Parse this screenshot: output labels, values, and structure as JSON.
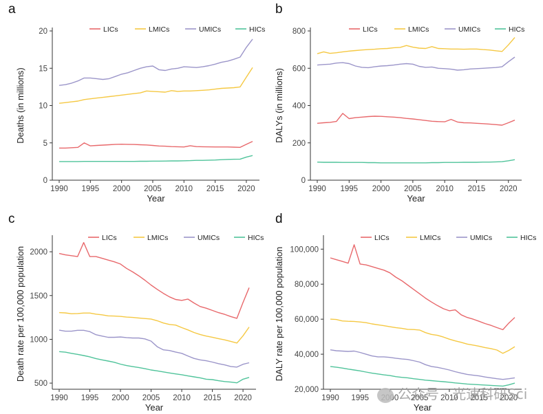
{
  "watermark": "公众号 · 光速科研Sci",
  "colors": {
    "LICs": "#e8686b",
    "LMICs": "#f5c842",
    "UMICs": "#9b95c9",
    "HICs": "#4fc39a"
  },
  "chart_data": [
    {
      "panel": "a",
      "type": "line",
      "xlabel": "Year",
      "ylabel": "Deaths (in millions)",
      "xlim": [
        1990,
        2021
      ],
      "ylim": [
        0,
        20
      ],
      "xticks": [
        1990,
        1995,
        2000,
        2005,
        2010,
        2015,
        2020
      ],
      "yticks": [
        0,
        5,
        10,
        15,
        20
      ],
      "ytick_labels": [
        "0",
        "5",
        "10",
        "15",
        "20"
      ],
      "legend_position": "top-center",
      "x": [
        1990,
        1991,
        1992,
        1993,
        1994,
        1995,
        1996,
        1997,
        1998,
        1999,
        2000,
        2001,
        2002,
        2003,
        2004,
        2005,
        2006,
        2007,
        2008,
        2009,
        2010,
        2011,
        2012,
        2013,
        2014,
        2015,
        2016,
        2017,
        2018,
        2019,
        2020,
        2021
      ],
      "series": [
        {
          "name": "LICs",
          "values": [
            4.3,
            4.3,
            4.35,
            4.4,
            5.0,
            4.6,
            4.65,
            4.7,
            4.75,
            4.8,
            4.82,
            4.8,
            4.78,
            4.75,
            4.72,
            4.65,
            4.58,
            4.55,
            4.5,
            4.48,
            4.45,
            4.62,
            4.5,
            4.48,
            4.46,
            4.45,
            4.45,
            4.45,
            4.42,
            4.4,
            4.8,
            5.2
          ]
        },
        {
          "name": "LMICs",
          "values": [
            10.3,
            10.4,
            10.5,
            10.6,
            10.8,
            10.9,
            11.0,
            11.1,
            11.2,
            11.3,
            11.4,
            11.5,
            11.6,
            11.7,
            11.95,
            11.9,
            11.85,
            11.8,
            12.0,
            11.9,
            11.95,
            11.95,
            12.0,
            12.05,
            12.1,
            12.2,
            12.3,
            12.35,
            12.4,
            12.5,
            13.8,
            15.1
          ]
        },
        {
          "name": "UMICs",
          "values": [
            12.7,
            12.8,
            13.0,
            13.3,
            13.7,
            13.7,
            13.6,
            13.5,
            13.6,
            13.9,
            14.2,
            14.4,
            14.7,
            15.0,
            15.2,
            15.3,
            14.8,
            14.7,
            14.9,
            15.0,
            15.2,
            15.15,
            15.1,
            15.2,
            15.35,
            15.55,
            15.8,
            15.95,
            16.2,
            16.5,
            17.8,
            18.9
          ]
        },
        {
          "name": "HICs",
          "values": [
            2.5,
            2.5,
            2.5,
            2.5,
            2.52,
            2.52,
            2.52,
            2.52,
            2.52,
            2.52,
            2.52,
            2.52,
            2.52,
            2.53,
            2.53,
            2.55,
            2.55,
            2.56,
            2.58,
            2.58,
            2.6,
            2.62,
            2.65,
            2.65,
            2.68,
            2.7,
            2.75,
            2.78,
            2.8,
            2.82,
            3.1,
            3.3
          ]
        }
      ]
    },
    {
      "panel": "b",
      "type": "line",
      "xlabel": "Year",
      "ylabel": "DALYs (in millions)",
      "xlim": [
        1990,
        2021
      ],
      "ylim": [
        0,
        800
      ],
      "xticks": [
        1990,
        1995,
        2000,
        2005,
        2010,
        2015,
        2020
      ],
      "yticks": [
        0,
        200,
        400,
        600,
        800
      ],
      "ytick_labels": [
        "0",
        "200",
        "400",
        "600",
        "800"
      ],
      "legend_position": "top-center",
      "x": [
        1990,
        1991,
        1992,
        1993,
        1994,
        1995,
        1996,
        1997,
        1998,
        1999,
        2000,
        2001,
        2002,
        2003,
        2004,
        2005,
        2006,
        2007,
        2008,
        2009,
        2010,
        2011,
        2012,
        2013,
        2014,
        2015,
        2016,
        2017,
        2018,
        2019,
        2020,
        2021
      ],
      "series": [
        {
          "name": "LICs",
          "values": [
            305,
            308,
            310,
            315,
            358,
            330,
            335,
            338,
            341,
            343,
            342,
            340,
            338,
            335,
            331,
            328,
            324,
            320,
            316,
            314,
            313,
            326,
            312,
            308,
            307,
            305,
            303,
            301,
            298,
            295,
            308,
            322
          ]
        },
        {
          "name": "LMICs",
          "values": [
            678,
            688,
            680,
            683,
            688,
            692,
            695,
            698,
            700,
            702,
            705,
            706,
            710,
            712,
            722,
            713,
            708,
            706,
            716,
            706,
            705,
            703,
            703,
            702,
            703,
            703,
            700,
            698,
            694,
            690,
            725,
            765
          ]
        },
        {
          "name": "UMICs",
          "values": [
            617,
            620,
            622,
            628,
            630,
            625,
            612,
            605,
            603,
            608,
            612,
            614,
            617,
            622,
            625,
            622,
            610,
            605,
            607,
            600,
            598,
            595,
            590,
            592,
            596,
            598,
            600,
            602,
            604,
            608,
            635,
            660
          ]
        },
        {
          "name": "HICs",
          "values": [
            97,
            96,
            96,
            96,
            95,
            95,
            95,
            95,
            94,
            94,
            93,
            93,
            93,
            93,
            93,
            93,
            93,
            93,
            94,
            94,
            95,
            95,
            95,
            96,
            96,
            96,
            97,
            97,
            98,
            99,
            104,
            110
          ]
        }
      ]
    },
    {
      "panel": "c",
      "type": "line",
      "xlabel": "Year",
      "ylabel": "Death rate per 100,000 population",
      "xlim": [
        1990,
        2021
      ],
      "ylim": [
        430,
        2150
      ],
      "xticks": [
        1990,
        1995,
        2000,
        2005,
        2010,
        2015,
        2020
      ],
      "yticks": [
        500,
        1000,
        1500,
        2000
      ],
      "ytick_labels": [
        "500",
        "1000",
        "1500",
        "2000"
      ],
      "legend_position": "top-center",
      "x": [
        1990,
        1991,
        1992,
        1993,
        1994,
        1995,
        1996,
        1997,
        1998,
        1999,
        2000,
        2001,
        2002,
        2003,
        2004,
        2005,
        2006,
        2007,
        2008,
        2009,
        2010,
        2011,
        2012,
        2013,
        2014,
        2015,
        2016,
        2017,
        2018,
        2019,
        2020,
        2021
      ],
      "series": [
        {
          "name": "LICs",
          "values": [
            1980,
            1965,
            1955,
            1945,
            2105,
            1945,
            1945,
            1925,
            1905,
            1885,
            1860,
            1810,
            1770,
            1725,
            1675,
            1620,
            1570,
            1525,
            1485,
            1455,
            1445,
            1460,
            1415,
            1375,
            1355,
            1330,
            1305,
            1285,
            1260,
            1240,
            1420,
            1590
          ]
        },
        {
          "name": "LMICs",
          "values": [
            1305,
            1302,
            1292,
            1295,
            1300,
            1300,
            1288,
            1280,
            1268,
            1266,
            1262,
            1254,
            1250,
            1244,
            1237,
            1232,
            1212,
            1186,
            1170,
            1163,
            1134,
            1108,
            1078,
            1055,
            1037,
            1024,
            1008,
            994,
            977,
            958,
            1040,
            1140
          ]
        },
        {
          "name": "UMICs",
          "values": [
            1105,
            1093,
            1093,
            1103,
            1103,
            1088,
            1053,
            1037,
            1023,
            1023,
            1027,
            1020,
            1015,
            1015,
            1005,
            980,
            915,
            880,
            872,
            855,
            840,
            810,
            782,
            765,
            755,
            740,
            722,
            708,
            690,
            683,
            715,
            732
          ]
        },
        {
          "name": "HICs",
          "values": [
            860,
            853,
            840,
            828,
            815,
            800,
            780,
            765,
            752,
            738,
            717,
            700,
            688,
            678,
            665,
            650,
            640,
            628,
            616,
            605,
            596,
            582,
            571,
            560,
            545,
            540,
            527,
            518,
            512,
            503,
            545,
            565
          ]
        }
      ]
    },
    {
      "panel": "d",
      "type": "line",
      "xlabel": "Year",
      "ylabel": "DALY rate per 100,000 population",
      "xlim": [
        1990,
        2021
      ],
      "ylim": [
        20000,
        106000
      ],
      "xticks": [
        1990,
        1995,
        2000,
        2005,
        2010,
        2015,
        2020
      ],
      "yticks": [
        20000,
        40000,
        60000,
        80000,
        100000
      ],
      "ytick_labels": [
        "20,000",
        "40,000",
        "60,000",
        "80,000",
        "100,000"
      ],
      "legend_position": "top-center",
      "x": [
        1990,
        1991,
        1992,
        1993,
        1994,
        1995,
        1996,
        1997,
        1998,
        1999,
        2000,
        2001,
        2002,
        2003,
        2004,
        2005,
        2006,
        2007,
        2008,
        2009,
        2010,
        2011,
        2012,
        2013,
        2014,
        2015,
        2016,
        2017,
        2018,
        2019,
        2020,
        2021
      ],
      "series": [
        {
          "name": "LICs",
          "values": [
            95000,
            94000,
            93000,
            92000,
            102500,
            91500,
            91000,
            90000,
            89000,
            88000,
            86500,
            84000,
            82000,
            79500,
            77000,
            74500,
            72000,
            69800,
            67800,
            66000,
            64800,
            65300,
            62500,
            61000,
            60000,
            58800,
            57500,
            56500,
            55200,
            54000,
            57800,
            61000
          ]
        },
        {
          "name": "LMICs",
          "values": [
            60000,
            59800,
            59000,
            58800,
            58700,
            58400,
            58000,
            57300,
            56800,
            56300,
            55700,
            55200,
            54800,
            54200,
            54100,
            53800,
            52300,
            51300,
            50800,
            49800,
            48600,
            47600,
            46800,
            45800,
            45200,
            44600,
            43800,
            43200,
            42400,
            40500,
            42200,
            44300
          ]
        },
        {
          "name": "UMICs",
          "values": [
            42500,
            42000,
            41800,
            41600,
            41800,
            41000,
            40000,
            39000,
            38500,
            38500,
            38200,
            37700,
            37300,
            37000,
            36300,
            35500,
            34000,
            33000,
            32500,
            31800,
            31000,
            30000,
            29200,
            28500,
            28000,
            27600,
            27000,
            26500,
            26000,
            25600,
            26000,
            26500
          ]
        },
        {
          "name": "HICs",
          "values": [
            33000,
            32600,
            32100,
            31500,
            31000,
            30500,
            29800,
            29200,
            28700,
            28200,
            27800,
            27200,
            26800,
            26500,
            26000,
            25600,
            25200,
            24900,
            24600,
            24300,
            24000,
            23600,
            23300,
            23000,
            22800,
            22600,
            22400,
            22200,
            22000,
            21800,
            22500,
            23500
          ]
        }
      ]
    }
  ]
}
